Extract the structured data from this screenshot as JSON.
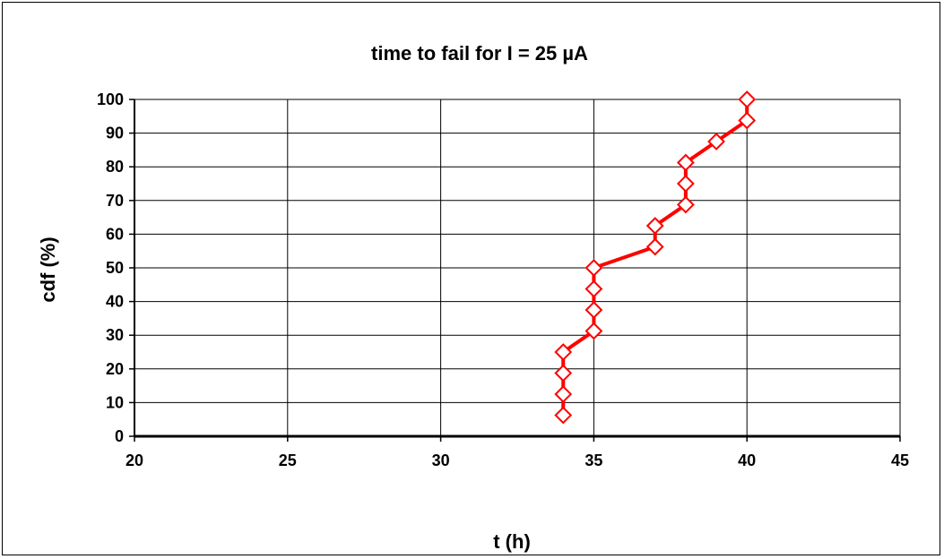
{
  "chart_data": {
    "type": "line",
    "title": "time to fail for I = 25 µA",
    "xlabel": "t (h)",
    "ylabel": "cdf  (%)",
    "xlim": [
      20,
      45
    ],
    "ylim": [
      0,
      100
    ],
    "xticks": [
      20,
      25,
      30,
      35,
      40,
      45
    ],
    "yticks": [
      0,
      10,
      20,
      30,
      40,
      50,
      60,
      70,
      80,
      90,
      100
    ],
    "grid": true,
    "legend": "none",
    "series": [
      {
        "color": "#ff0000",
        "marker": "diamond-open",
        "x": [
          34,
          34,
          34,
          34,
          35,
          35,
          35,
          35,
          37,
          37,
          38,
          38,
          38,
          39,
          40,
          40
        ],
        "y": [
          6.25,
          12.5,
          18.75,
          25,
          31.25,
          37.5,
          43.75,
          50,
          56.25,
          62.5,
          68.75,
          75,
          81.25,
          87.5,
          93.75,
          100
        ]
      }
    ]
  }
}
